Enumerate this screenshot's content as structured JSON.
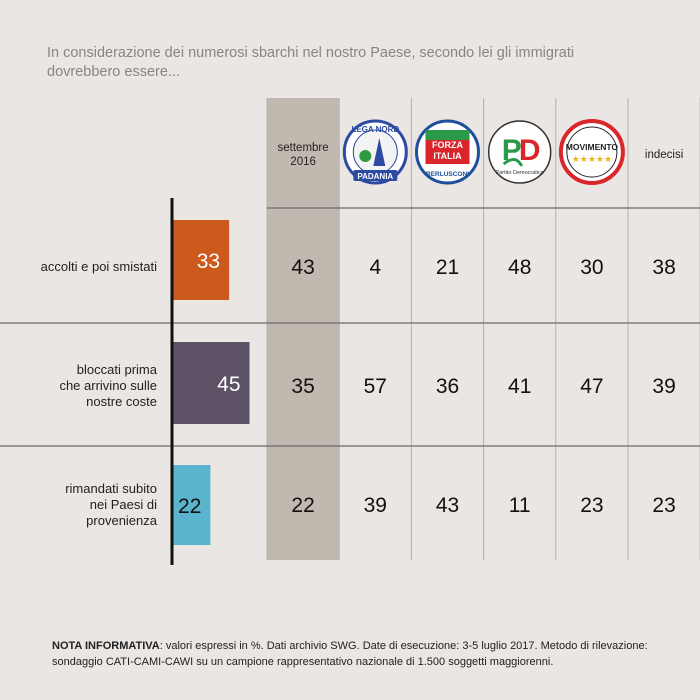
{
  "question": "In considerazione dei numerosi sbarchi nel nostro Paese, secondo lei gli immigrati dovrebbero essere...",
  "footnote": {
    "label": "NOTA INFORMATIVA",
    "text": ": valori espressi in %. Dati archivio SWG. Date di esecuzione: 3-5 luglio 2017. Metodo di rilevazione: sondaggio CATI-CAMI-CAWI su un campione rappresentativo nazionale di 1.500 soggetti maggiorenni."
  },
  "colors": {
    "background": "#e9e6e3",
    "highlight_column": "#c1b8af",
    "row_line": "#6a6a6a",
    "col_line": "#b5b0ab",
    "axis": "#111111"
  },
  "chart_data": {
    "type": "bar",
    "orientation": "horizontal",
    "categories": [
      [
        "accolti e poi smistati"
      ],
      [
        "bloccati prima",
        "che arrivino sulle",
        "nostre coste"
      ],
      [
        "rimandati subito",
        "nei Paesi di",
        "provenienza"
      ]
    ],
    "values": [
      33,
      45,
      22
    ],
    "bar_colors": [
      "#cc5a1c",
      "#5d5265",
      "#5ab4ce"
    ],
    "xlim": [
      0,
      100
    ],
    "table": {
      "columns": [
        {
          "key": "settembre",
          "label": [
            "settembre",
            "2016"
          ],
          "logo": null,
          "values": [
            43,
            35,
            22
          ]
        },
        {
          "key": "lega",
          "label": [],
          "logo": "lega-nord-logo",
          "logo_text": [
            "LEGA NORD",
            "PADANIA"
          ],
          "values": [
            4,
            57,
            39
          ]
        },
        {
          "key": "forza",
          "label": [],
          "logo": "forza-italia-logo",
          "logo_text": [
            "FORZA",
            "ITALIA",
            "BERLUSCONI"
          ],
          "values": [
            21,
            36,
            43
          ]
        },
        {
          "key": "pd",
          "label": [],
          "logo": "pd-logo",
          "logo_text": [
            "PD",
            "Partito Democratico"
          ],
          "values": [
            48,
            41,
            11
          ]
        },
        {
          "key": "m5s",
          "label": [],
          "logo": "movimento-5-stelle-logo",
          "logo_text": [
            "MOVIMENTO",
            "★★★★★"
          ],
          "values": [
            30,
            47,
            23
          ]
        },
        {
          "key": "indecisi",
          "label": [
            "indecisi"
          ],
          "logo": null,
          "values": [
            38,
            39,
            23
          ]
        }
      ]
    }
  }
}
